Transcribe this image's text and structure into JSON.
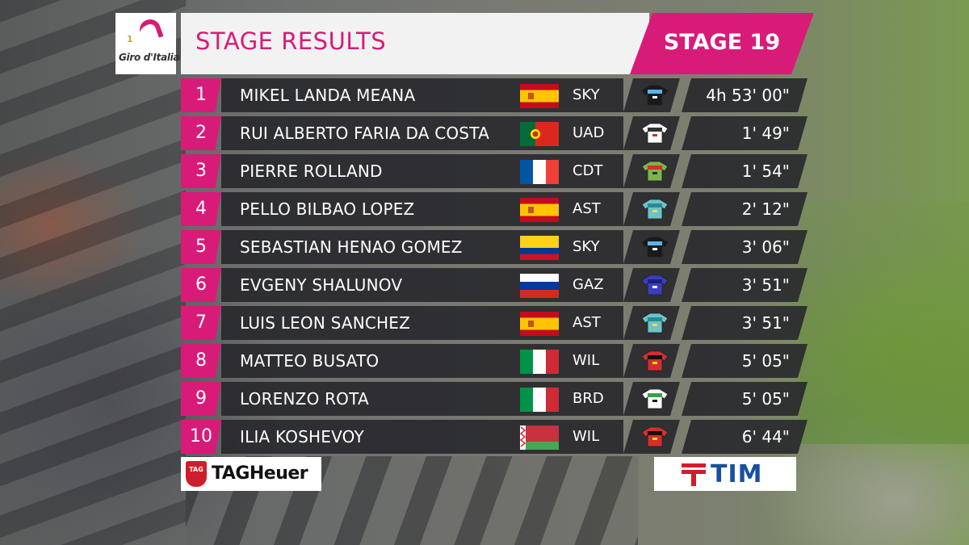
{
  "header": {
    "logo_number": "1",
    "logo_name": "Giro d'Italia",
    "title": "STAGE RESULTS",
    "stage": "STAGE 19"
  },
  "colors": {
    "accent": "#d81b78",
    "strip": "#26262a"
  },
  "results": [
    {
      "pos": "1",
      "name": "MIKEL LANDA MEANA",
      "flag": "spain-flag",
      "team": "SKY",
      "jersey": "sky-jersey-icon",
      "time": "4h 53' 00\""
    },
    {
      "pos": "2",
      "name": "RUI ALBERTO FARIA DA COSTA",
      "flag": "portugal-flag",
      "team": "UAD",
      "jersey": "uad-jersey-icon",
      "time": "1' 49\""
    },
    {
      "pos": "3",
      "name": "PIERRE ROLLAND",
      "flag": "france-flag",
      "team": "CDT",
      "jersey": "cdt-jersey-icon",
      "time": "1' 54\""
    },
    {
      "pos": "4",
      "name": "PELLO BILBAO LOPEZ",
      "flag": "spain-flag",
      "team": "AST",
      "jersey": "ast-jersey-icon",
      "time": "2' 12\""
    },
    {
      "pos": "5",
      "name": "SEBASTIAN HENAO GOMEZ",
      "flag": "colombia-flag",
      "team": "SKY",
      "jersey": "sky-jersey-icon",
      "time": "3' 06\""
    },
    {
      "pos": "6",
      "name": "EVGENY SHALUNOV",
      "flag": "russia-flag",
      "team": "GAZ",
      "jersey": "gaz-jersey-icon",
      "time": "3' 51\""
    },
    {
      "pos": "7",
      "name": "LUIS LEON SANCHEZ",
      "flag": "spain-flag",
      "team": "AST",
      "jersey": "ast-jersey-icon",
      "time": "3' 51\""
    },
    {
      "pos": "8",
      "name": "MATTEO BUSATO",
      "flag": "italy-flag",
      "team": "WIL",
      "jersey": "wil-jersey-icon",
      "time": "5' 05\""
    },
    {
      "pos": "9",
      "name": "LORENZO ROTA",
      "flag": "italy-flag",
      "team": "BRD",
      "jersey": "brd-jersey-icon",
      "time": "5' 05\""
    },
    {
      "pos": "10",
      "name": "ILIA KOSHEVOY",
      "flag": "belarus-flag",
      "team": "WIL",
      "jersey": "wil-jersey-icon",
      "time": "6' 44\""
    }
  ],
  "sponsors": {
    "left_mark": "TAG",
    "left": "TAGHeuer",
    "right": "TIM"
  }
}
